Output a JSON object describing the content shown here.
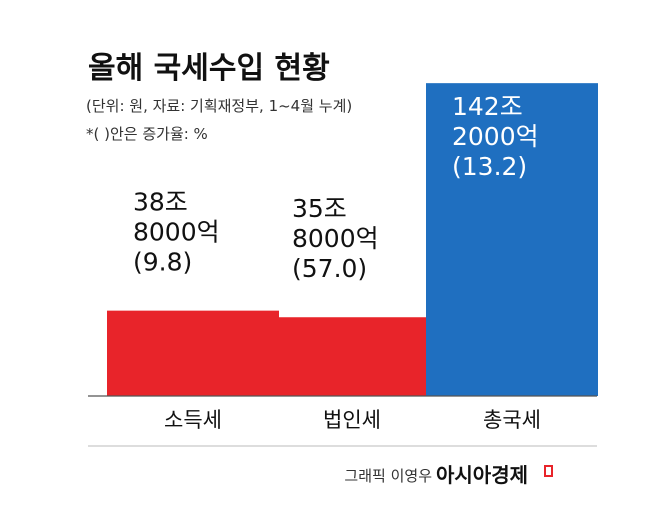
{
  "chart_data": {
    "type": "bar",
    "title": "올해 국세수입 현황",
    "subtitle": "(단위: 원, 자료: 기획재정부, 1~4월 누계)",
    "note": "*(    )안은 증가율: %",
    "categories": [
      "소득세",
      "법인세",
      "총국세"
    ],
    "values": [
      38.8,
      35.8,
      142.2
    ],
    "value_unit": "조원",
    "growth_rates": [
      9.8,
      57.0,
      13.2
    ],
    "bar_labels": [
      [
        "38조",
        "8000억",
        "(9.8)"
      ],
      [
        "35조",
        "8000억",
        "(57.0)"
      ],
      [
        "142조",
        "2000억",
        "(13.2)"
      ]
    ],
    "bar_colors": [
      "#e8242a",
      "#e8242a",
      "#1f6fc0"
    ],
    "ylim": [
      0,
      150
    ],
    "grid": false,
    "legend": "none"
  },
  "credit": {
    "text": "그래픽 이영우",
    "brand": "아시아경제"
  }
}
